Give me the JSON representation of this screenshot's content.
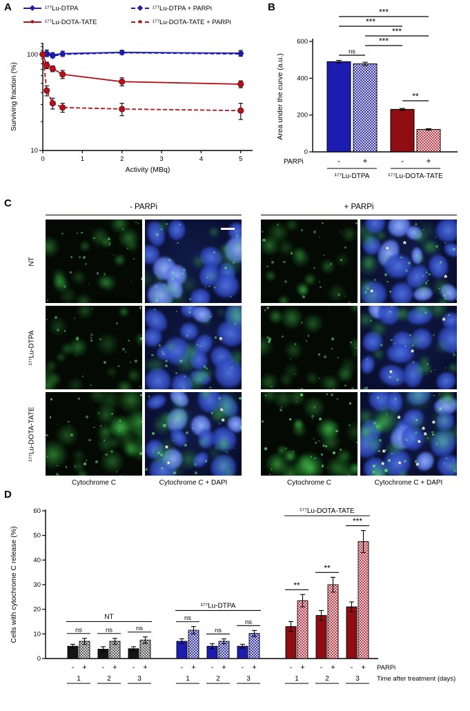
{
  "panels": {
    "A": {
      "letter": "A"
    },
    "B": {
      "letter": "B"
    },
    "C": {
      "letter": "C",
      "group_headers": [
        "- PARPi",
        "+ PARPi"
      ],
      "row_labels": [
        "NT",
        "¹⁷⁷Lu-DTPA",
        "¹⁷⁷Lu-DOTA-TATE"
      ],
      "col_captions": [
        "Cytochrome C",
        "Cytochrome C + DAPI",
        "Cytochrome C",
        "Cytochrome C + DAPI"
      ],
      "cells": [
        {
          "row": "NT",
          "col": "-PARPi Cytochrome C",
          "kind": "green",
          "seed": 11,
          "intensity": 0.5,
          "asterisks": 0
        },
        {
          "row": "NT",
          "col": "-PARPi Cytochrome C + DAPI",
          "kind": "merge",
          "seed": 12,
          "intensity": 0.45,
          "asterisks": 0,
          "scalebar": true
        },
        {
          "row": "NT",
          "col": "+PARPi Cytochrome C",
          "kind": "green",
          "seed": 13,
          "intensity": 0.45,
          "asterisks": 0
        },
        {
          "row": "NT",
          "col": "+PARPi Cytochrome C + DAPI",
          "kind": "merge",
          "seed": 14,
          "intensity": 0.5,
          "asterisks": 4
        },
        {
          "row": "¹⁷⁷Lu-DTPA",
          "col": "-PARPi Cytochrome C",
          "kind": "green",
          "seed": 21,
          "intensity": 0.5,
          "asterisks": 0
        },
        {
          "row": "¹⁷⁷Lu-DTPA",
          "col": "-PARPi Cytochrome C + DAPI",
          "kind": "merge",
          "seed": 22,
          "intensity": 0.45,
          "asterisks": 1
        },
        {
          "row": "¹⁷⁷Lu-DTPA",
          "col": "+PARPi Cytochrome C",
          "kind": "green",
          "seed": 23,
          "intensity": 0.5,
          "asterisks": 0
        },
        {
          "row": "¹⁷⁷Lu-DTPA",
          "col": "+PARPi Cytochrome C + DAPI",
          "kind": "merge",
          "seed": 24,
          "intensity": 0.45,
          "asterisks": 3
        },
        {
          "row": "¹⁷⁷Lu-DOTA-TATE",
          "col": "-PARPi Cytochrome C",
          "kind": "green",
          "seed": 31,
          "intensity": 0.75,
          "asterisks": 0
        },
        {
          "row": "¹⁷⁷Lu-DOTA-TATE",
          "col": "-PARPi Cytochrome C + DAPI",
          "kind": "merge",
          "seed": 32,
          "intensity": 0.65,
          "asterisks": 4
        },
        {
          "row": "¹⁷⁷Lu-DOTA-TATE",
          "col": "+PARPi Cytochrome C",
          "kind": "green",
          "seed": 33,
          "intensity": 0.9,
          "asterisks": 0
        },
        {
          "row": "¹⁷⁷Lu-DOTA-TATE",
          "col": "+PARPi Cytochrome C + DAPI",
          "kind": "merge",
          "seed": 34,
          "intensity": 0.85,
          "asterisks": 9
        }
      ]
    },
    "D": {
      "letter": "D"
    }
  },
  "bar_styles": {
    "blue-solid": {
      "fill": "#1c1cb0"
    },
    "blue-hatch": {
      "hatch": "#1c1cb0"
    },
    "red-solid": {
      "fill": "#8e0e13"
    },
    "red-hatch": {
      "hatch": "#bf2233"
    },
    "black-solid": {
      "fill": "#151515"
    },
    "black-hatch": {
      "hatch": "#444444"
    }
  },
  "chart_data": [
    {
      "type": "line",
      "panel": "A",
      "xlabel": "Activity (MBq)",
      "ylabel": "Surviving fraction (%)",
      "x": [
        0,
        0.1,
        0.25,
        0.5,
        2,
        5
      ],
      "xlim": [
        0,
        5.3
      ],
      "xticks": [
        0,
        1,
        2,
        3,
        4,
        5
      ],
      "yscale": "log",
      "ylim": [
        10,
        132
      ],
      "yticks_major": [
        10,
        100
      ],
      "yticks_minor": [
        20,
        30,
        40,
        50,
        60,
        70,
        80,
        90,
        110,
        120,
        130
      ],
      "legend_position": "top",
      "series": [
        {
          "name": "¹⁷⁷Lu-DTPA",
          "color": "#1c1cb0",
          "dash": false,
          "marker": "diamond",
          "values": [
            100,
            104,
            99,
            102,
            105,
            103
          ],
          "errors": [
            3,
            7,
            5,
            6,
            5,
            7
          ]
        },
        {
          "name": "¹⁷⁷Lu-DTPA + PARPi",
          "color": "#1c1cb0",
          "dash": true,
          "marker": "diamond",
          "values": [
            100,
            100,
            96,
            100,
            104,
            101
          ],
          "errors": [
            3,
            5,
            4,
            4,
            4,
            5
          ]
        },
        {
          "name": "¹⁷⁷Lu-DOTA-TATE",
          "color": "#b5121b",
          "dash": false,
          "marker": "circle",
          "values": [
            100,
            77,
            71,
            62,
            52,
            49
          ],
          "errors": [
            3,
            6,
            5,
            6,
            5,
            4
          ]
        },
        {
          "name": "¹⁷⁷Lu-DOTA-TATE + PARPi",
          "color": "#b5121b",
          "dash": true,
          "marker": "circle",
          "values": [
            100,
            42,
            31,
            28,
            27,
            26
          ],
          "errors": [
            3,
            5,
            4,
            3,
            4,
            5
          ]
        }
      ]
    },
    {
      "type": "bar",
      "panel": "B",
      "ylabel": "Area under the curve (a.u.)",
      "ylim": [
        0,
        600
      ],
      "yticks": [
        0,
        200,
        400,
        600
      ],
      "categories": [
        "-",
        "+",
        "-",
        "+"
      ],
      "values": [
        490,
        478,
        231,
        122
      ],
      "errors": [
        7,
        9,
        5,
        4
      ],
      "styles": [
        "blue-solid",
        "blue-hatch",
        "red-solid",
        "red-hatch"
      ],
      "axis_row_label": "PARPi",
      "group_labels": [
        "¹⁷⁷Lu-DTPA",
        "¹⁷⁷Lu-DOTA-TATE"
      ],
      "brackets": [
        {
          "from": 0,
          "to": 3,
          "label": "***"
        },
        {
          "from": 0,
          "to": 2,
          "label": "***"
        },
        {
          "from": 1,
          "to": 3,
          "label": "***"
        },
        {
          "from": 1,
          "to": 2,
          "label": "***"
        },
        {
          "from": 0,
          "to": 1,
          "label": "ns"
        },
        {
          "from": 2,
          "to": 3,
          "label": "**"
        }
      ]
    },
    {
      "type": "bar",
      "panel": "D",
      "ylabel": "Cells with cytochrome C release (%)",
      "ylim": [
        0,
        60
      ],
      "yticks": [
        0,
        10,
        20,
        30,
        40,
        50,
        60
      ],
      "parpi_label": "PARPi",
      "time_label": "Time after treatment (days)",
      "groups": [
        {
          "name": "NT",
          "style_minus": "black-solid",
          "style_plus": "black-hatch",
          "header_y": 15,
          "days": [
            {
              "day": "1",
              "minus": 5,
              "plus": 7,
              "minus_err": 0.8,
              "plus_err": 1.2,
              "sig": "ns"
            },
            {
              "day": "2",
              "minus": 3.8,
              "plus": 7,
              "minus_err": 1.0,
              "plus_err": 1.2,
              "sig": "ns"
            },
            {
              "day": "3",
              "minus": 4,
              "plus": 7.5,
              "minus_err": 0.8,
              "plus_err": 1.3,
              "sig": "ns"
            }
          ]
        },
        {
          "name": "¹⁷⁷Lu-DTPA",
          "style_minus": "blue-solid",
          "style_plus": "blue-hatch",
          "header_y": 19.5,
          "days": [
            {
              "day": "1",
              "minus": 7,
              "plus": 11.5,
              "minus_err": 1.0,
              "plus_err": 1.5,
              "sig": "ns"
            },
            {
              "day": "2",
              "minus": 5,
              "plus": 7,
              "minus_err": 1.0,
              "plus_err": 1.0,
              "sig": "ns"
            },
            {
              "day": "3",
              "minus": 5,
              "plus": 10.2,
              "minus_err": 0.8,
              "plus_err": 1.2,
              "sig": "ns"
            }
          ]
        },
        {
          "name": "¹⁷⁷Lu-DOTA-TATE",
          "style_minus": "red-solid",
          "style_plus": "red-hatch",
          "header_y": 58,
          "days": [
            {
              "day": "1",
              "minus": 13,
              "plus": 23.5,
              "minus_err": 2.0,
              "plus_err": 2.5,
              "sig": "**"
            },
            {
              "day": "2",
              "minus": 17.5,
              "plus": 30,
              "minus_err": 2.0,
              "plus_err": 3.0,
              "sig": "**"
            },
            {
              "day": "3",
              "minus": 21,
              "plus": 47.5,
              "minus_err": 2.0,
              "plus_err": 4.5,
              "sig": "***"
            }
          ]
        }
      ]
    }
  ]
}
